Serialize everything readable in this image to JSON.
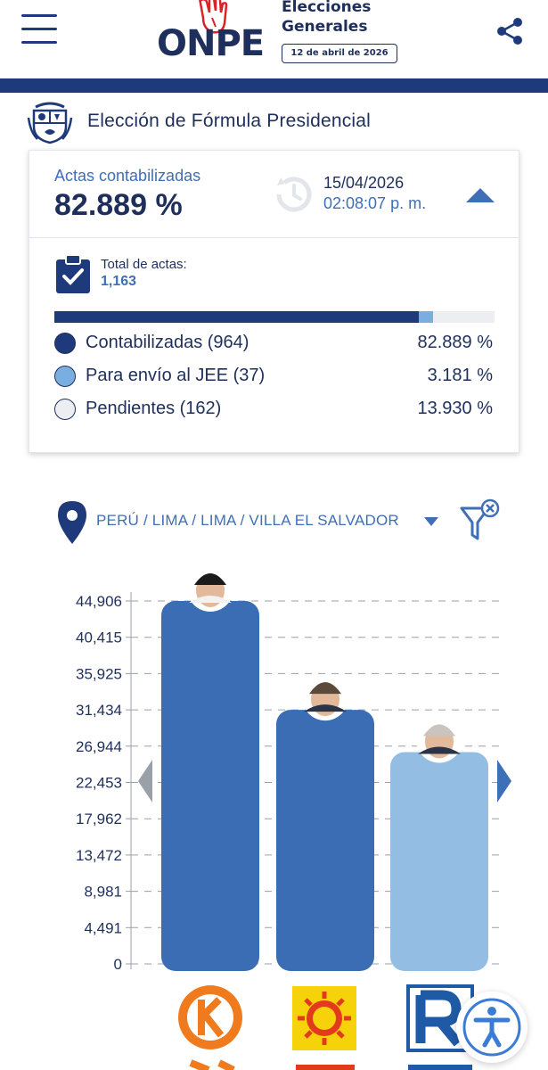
{
  "header": {
    "brand": "ONPE",
    "event_title_line1": "Elecciones",
    "event_title_line2": "Generales",
    "event_date": "12 de abril de 2026"
  },
  "section": {
    "title": "Elección de Fórmula Presidencial"
  },
  "summary": {
    "actas_label": "Actas contabilizadas",
    "actas_pct": "82.889 %",
    "update_date": "15/04/2026",
    "update_time": "02:08:07 p. m.",
    "total_label": "Total de actas:",
    "total_value": "1,163",
    "breakdown": [
      {
        "label": "Contabilizadas (964)",
        "pct": "82.889 %",
        "fraction": 0.82889,
        "color": "#1f3a7a"
      },
      {
        "label": "Para envío al JEE (37)",
        "pct": "3.181 %",
        "fraction": 0.03181,
        "color": "#7aaee0"
      },
      {
        "label": "Pendientes (162)",
        "pct": "13.930 %",
        "fraction": 0.1393,
        "color": "#eceef2"
      }
    ]
  },
  "filter": {
    "location": "PERÚ / LIMA / LIMA / VILLA EL SALVADOR"
  },
  "chart_data": {
    "type": "bar",
    "y_ticks": [
      "44,906",
      "40,415",
      "35,925",
      "31,434",
      "26,944",
      "22,453",
      "17,962",
      "13,472",
      "8,981",
      "4,491",
      "0"
    ],
    "ylim": [
      0,
      44906
    ],
    "values": [
      44906,
      31434,
      26200
    ],
    "colors": [
      "#3b6db5",
      "#3b6db5",
      "#93bde3"
    ],
    "icons": [
      "candidate-photo-icon",
      "candidate-photo-icon",
      "candidate-photo-icon"
    ],
    "party_logos": [
      "fuerza-popular-logo-icon",
      "sun-party-logo-icon",
      "renovacion-popular-logo-icon"
    ]
  }
}
